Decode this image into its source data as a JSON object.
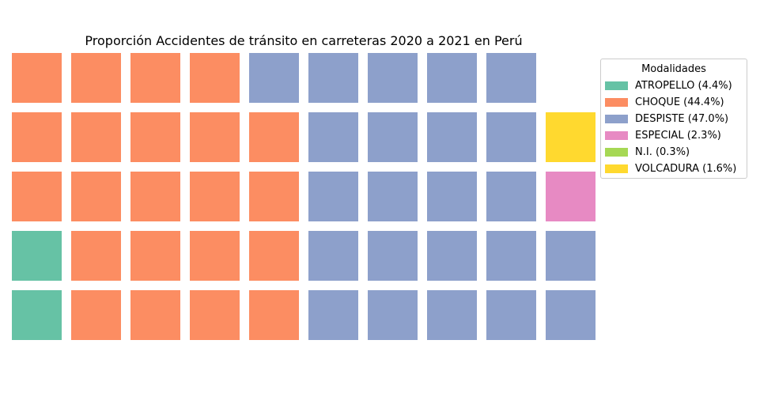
{
  "chart_data": {
    "type": "waffle",
    "title": "Proporción Accidentes de tránsito en carreteras 2020 a 2021 en Perú",
    "legend_title": "Modalidades",
    "legend_position": "upper-right outside",
    "grid": {
      "rows": 5,
      "columns": 10
    },
    "categories": [
      {
        "name": "ATROPELLO",
        "percent": 4.4,
        "squares": 2,
        "color": "#66c2a5",
        "label": "ATROPELLO (4.4%)"
      },
      {
        "name": "CHOQUE",
        "percent": 44.4,
        "squares": 22,
        "color": "#fc8d62",
        "label": "CHOQUE (44.4%)"
      },
      {
        "name": "DESPISTE",
        "percent": 47.0,
        "squares": 23,
        "color": "#8da0cb",
        "label": "DESPISTE (47.0%)"
      },
      {
        "name": "ESPECIAL",
        "percent": 2.3,
        "squares": 1,
        "color": "#e78ac3",
        "label": "ESPECIAL (2.3%)"
      },
      {
        "name": "N.I.",
        "percent": 0.3,
        "squares": 0,
        "color": "#a6d854",
        "label": "N.I. (0.3%)"
      },
      {
        "name": "VOLCADURA",
        "percent": 1.6,
        "squares": 1,
        "color": "#ffd92f",
        "label": "VOLCADURA (1.6%)"
      }
    ]
  }
}
